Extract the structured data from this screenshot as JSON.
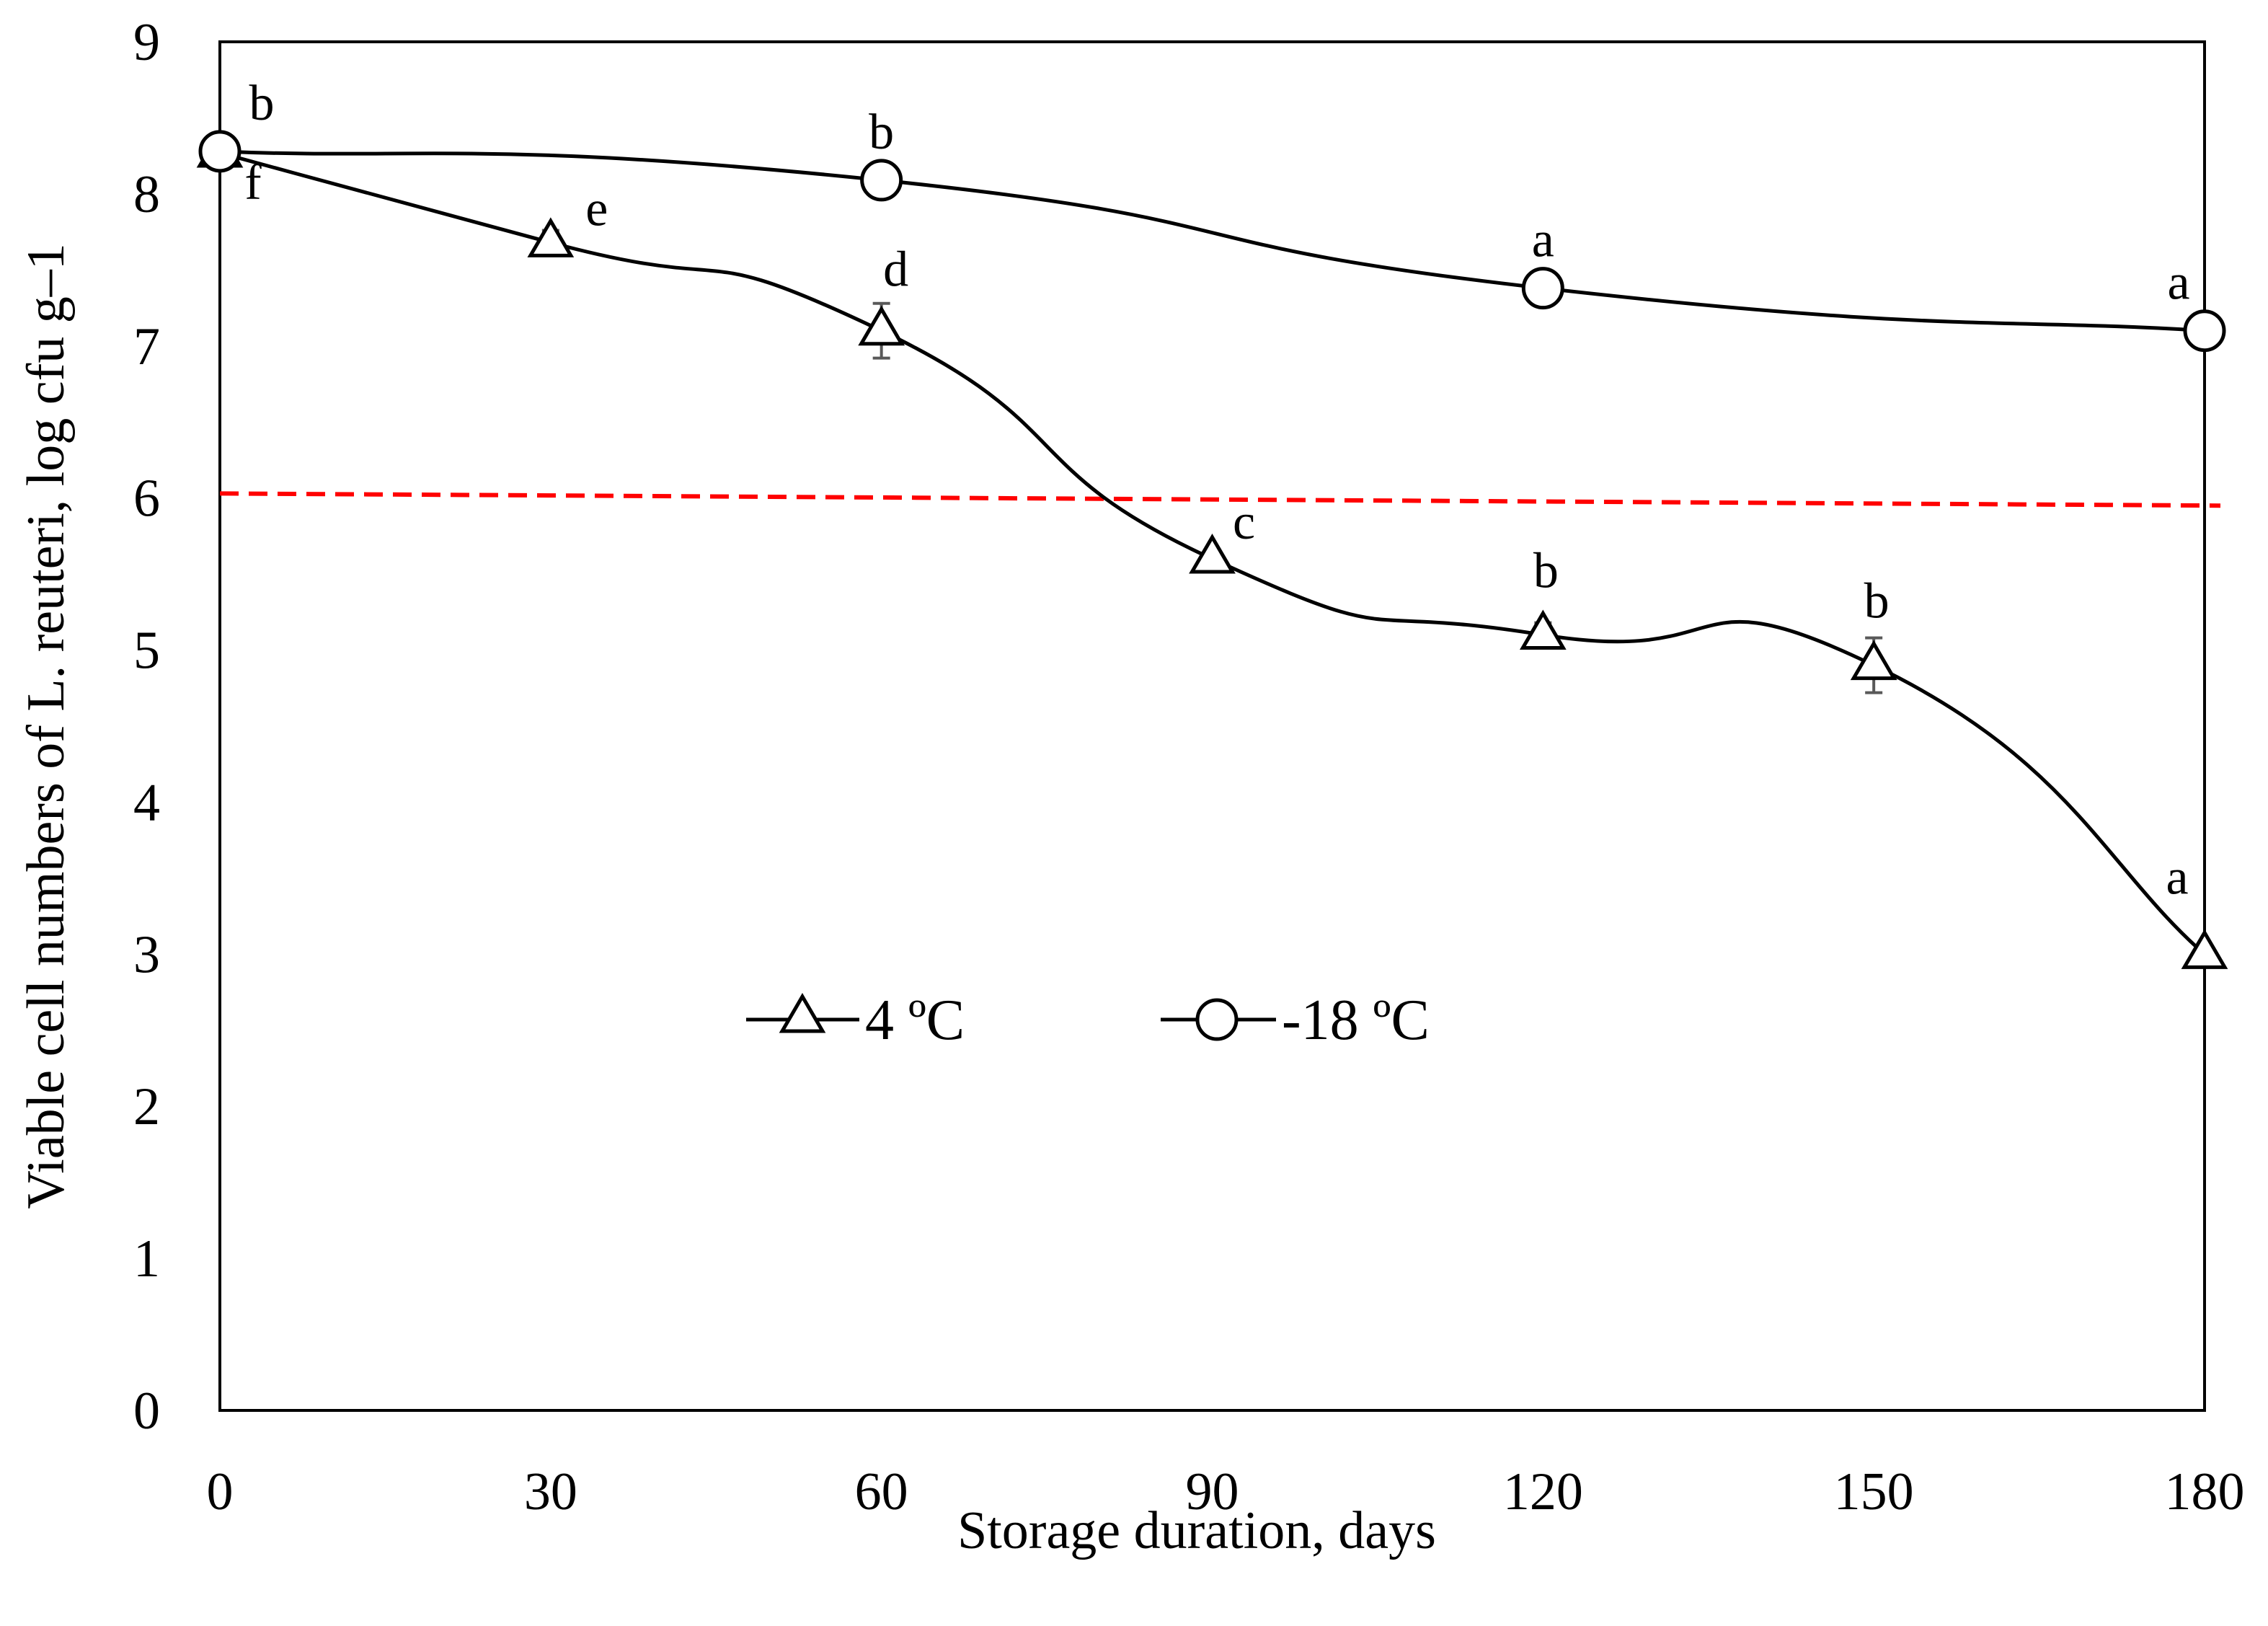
{
  "chart_data": {
    "type": "line",
    "title": "",
    "xlabel": "Storage duration, days",
    "ylabel": "Viable cell numbers of L. reuteri, log cfu g–1",
    "xlim": [
      0,
      180
    ],
    "ylim": [
      0,
      9
    ],
    "xticks": [
      0,
      30,
      60,
      90,
      120,
      150,
      180
    ],
    "yticks": [
      0,
      1,
      2,
      3,
      4,
      5,
      6,
      7,
      8,
      9
    ],
    "grid": false,
    "legend_position": "center-left",
    "threshold": {
      "y_start": 6.03,
      "y_end": 5.95,
      "color": "#ff0000",
      "style": "dashed"
    },
    "series": [
      {
        "name": "4 ºC",
        "marker": "triangle",
        "color": "#000000",
        "x": [
          0,
          30,
          60,
          90,
          120,
          150,
          180
        ],
        "y": [
          8.27,
          7.68,
          7.1,
          5.6,
          5.1,
          4.9,
          3.0
        ],
        "error": [
          0.0,
          0.08,
          0.18,
          0.06,
          0.08,
          0.18,
          0.0
        ],
        "letters": [
          "f",
          "e",
          "d",
          "c",
          "b",
          "b",
          "a"
        ]
      },
      {
        "name": "-18 ºC",
        "marker": "circle",
        "color": "#000000",
        "x": [
          0,
          60,
          120,
          180
        ],
        "y": [
          8.28,
          8.09,
          7.38,
          7.1
        ],
        "error": [
          0,
          0,
          0,
          0
        ],
        "letters": [
          "b",
          "b",
          "a",
          "a"
        ]
      }
    ]
  }
}
